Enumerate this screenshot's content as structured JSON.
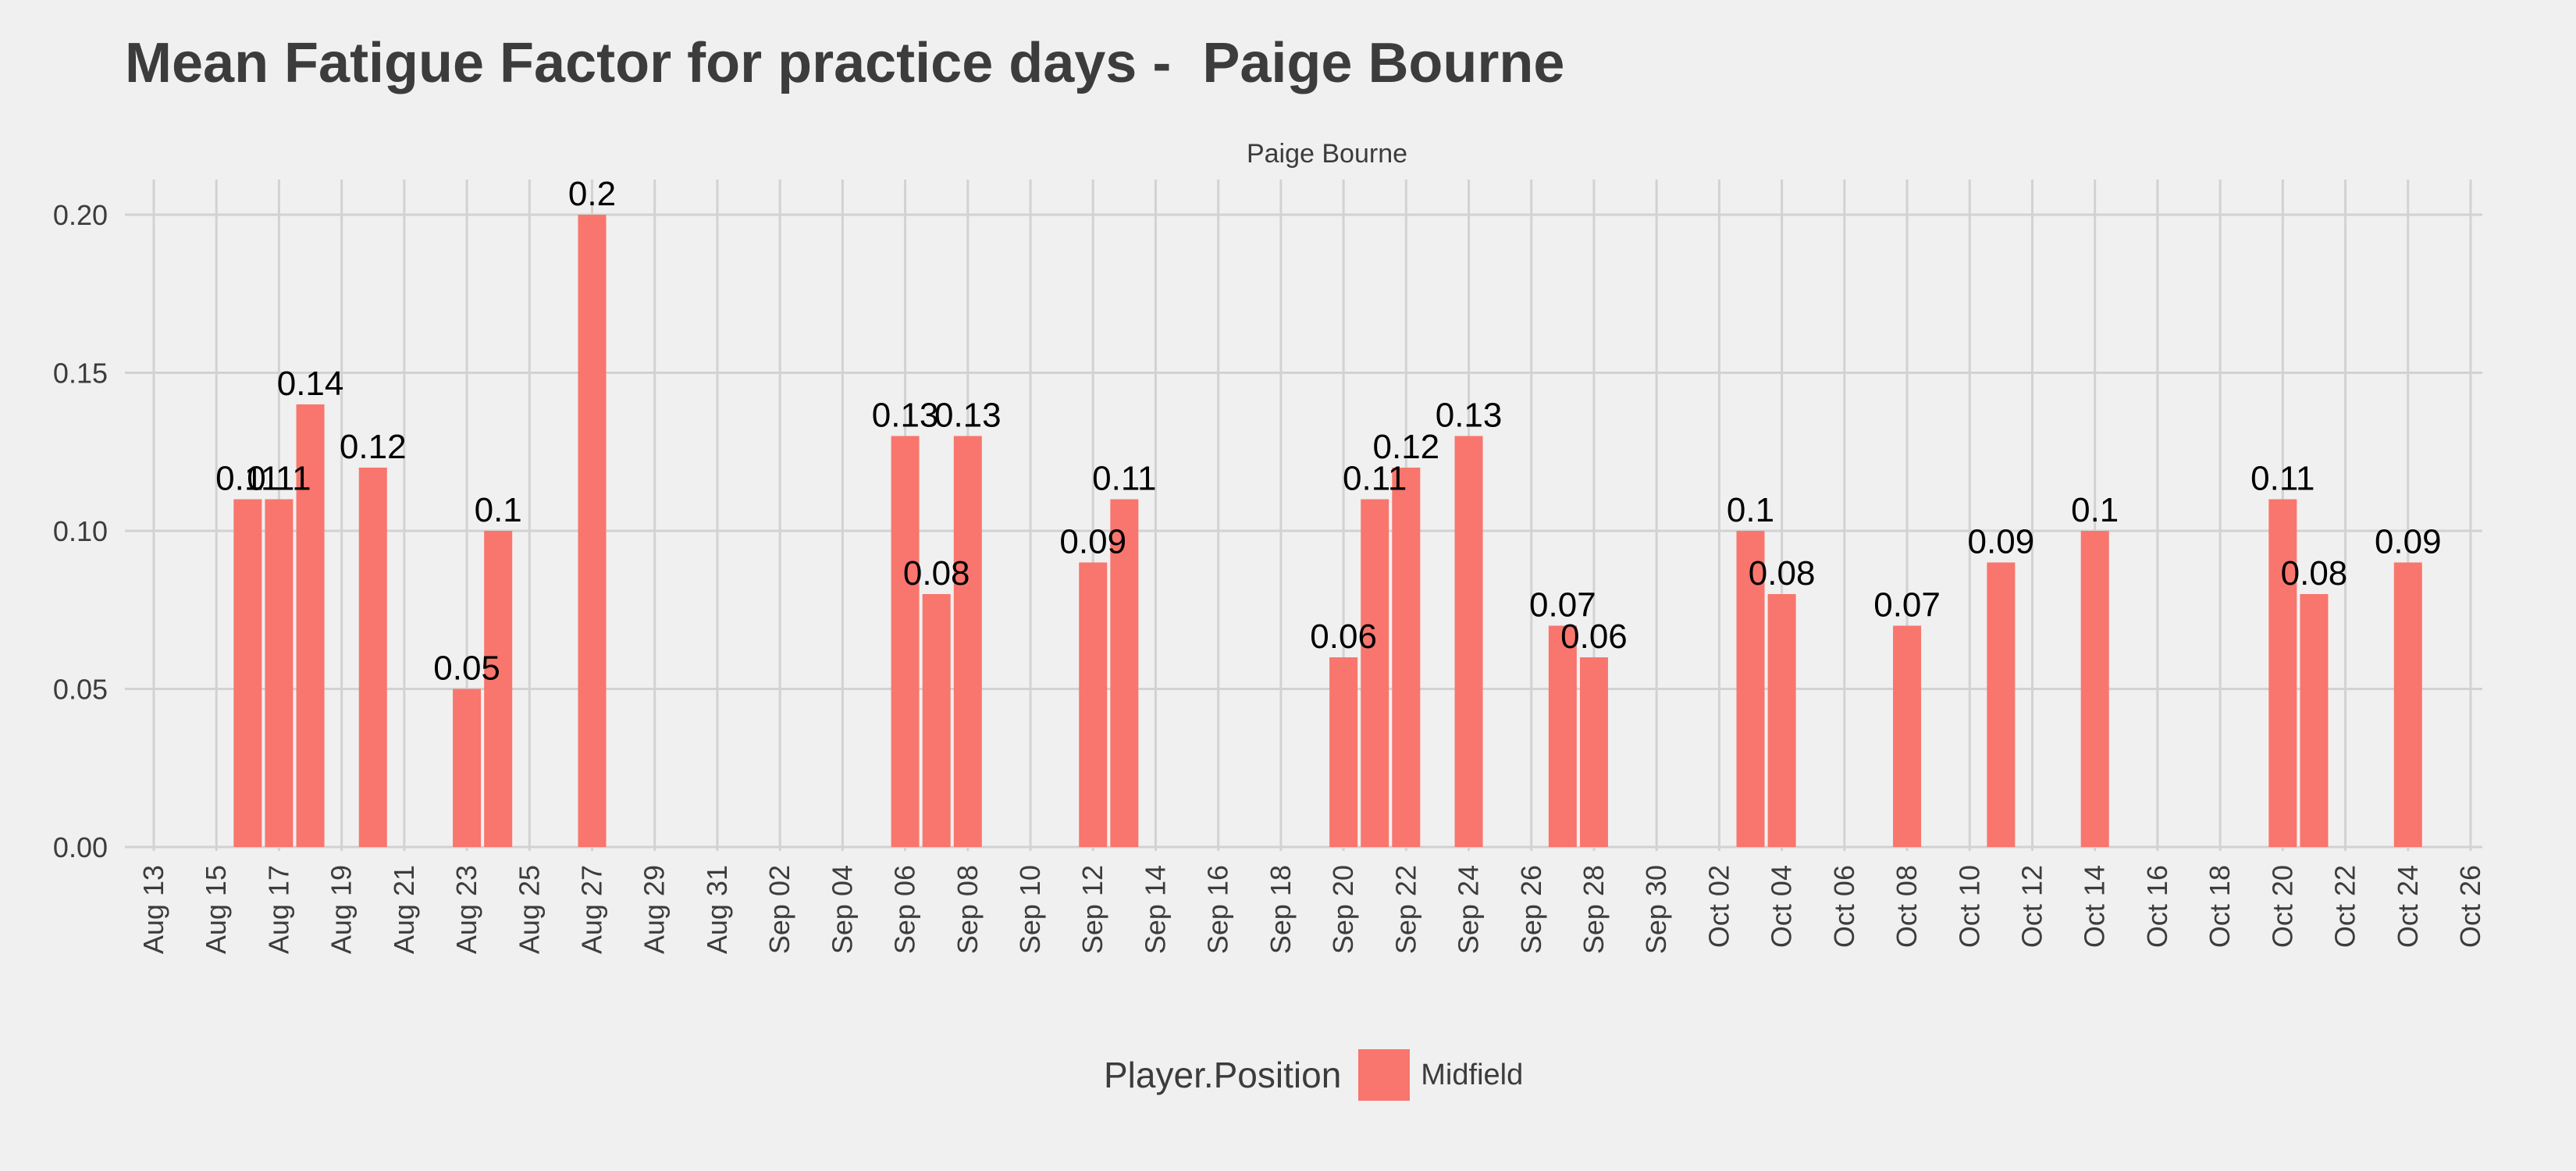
{
  "colors": {
    "background": "#f0f0f0",
    "grid": "#d2d2d2",
    "bar": "#f8766d",
    "text": "#3c3c3c"
  },
  "chart_data": {
    "type": "bar",
    "title": "Mean Fatigue Factor for practice days -  Paige Bourne",
    "subtitle": "Paige Bourne",
    "xlabel": "",
    "ylabel": "",
    "ylim": [
      0,
      0.2
    ],
    "yticks": [
      "0.00",
      "0.05",
      "0.10",
      "0.15",
      "0.20"
    ],
    "x_axis": {
      "type": "date",
      "range": [
        "Aug 13",
        "Oct 26"
      ],
      "tick_labels": [
        "Aug 13",
        "Aug 15",
        "Aug 17",
        "Aug 19",
        "Aug 21",
        "Aug 23",
        "Aug 25",
        "Aug 27",
        "Aug 29",
        "Aug 31",
        "Sep 02",
        "Sep 04",
        "Sep 06",
        "Sep 08",
        "Sep 10",
        "Sep 12",
        "Sep 14",
        "Sep 16",
        "Sep 18",
        "Sep 20",
        "Sep 22",
        "Sep 24",
        "Sep 26",
        "Sep 28",
        "Sep 30",
        "Oct 02",
        "Oct 04",
        "Oct 06",
        "Oct 08",
        "Oct 10",
        "Oct 12",
        "Oct 14",
        "Oct 16",
        "Oct 18",
        "Oct 20",
        "Oct 22",
        "Oct 24",
        "Oct 26"
      ]
    },
    "grid": true,
    "legend": {
      "title": "Player.Position",
      "position": "bottom",
      "entries": [
        {
          "label": "Midfield",
          "color": "#f8766d"
        }
      ]
    },
    "series": [
      {
        "name": "Midfield",
        "points": [
          {
            "x": "Aug 16",
            "y": 0.11,
            "label": "0.11"
          },
          {
            "x": "Aug 17",
            "y": 0.11,
            "label": "0.11"
          },
          {
            "x": "Aug 18",
            "y": 0.14,
            "label": "0.14"
          },
          {
            "x": "Aug 20",
            "y": 0.12,
            "label": "0.12"
          },
          {
            "x": "Aug 23",
            "y": 0.05,
            "label": "0.05"
          },
          {
            "x": "Aug 24",
            "y": 0.1,
            "label": "0.1"
          },
          {
            "x": "Aug 27",
            "y": 0.2,
            "label": "0.2"
          },
          {
            "x": "Sep 06",
            "y": 0.13,
            "label": "0.13"
          },
          {
            "x": "Sep 07",
            "y": 0.08,
            "label": "0.08"
          },
          {
            "x": "Sep 08",
            "y": 0.13,
            "label": "0.13"
          },
          {
            "x": "Sep 12",
            "y": 0.09,
            "label": "0.09"
          },
          {
            "x": "Sep 13",
            "y": 0.11,
            "label": "0.11"
          },
          {
            "x": "Sep 20",
            "y": 0.06,
            "label": "0.06"
          },
          {
            "x": "Sep 21",
            "y": 0.11,
            "label": "0.11"
          },
          {
            "x": "Sep 22",
            "y": 0.12,
            "label": "0.12"
          },
          {
            "x": "Sep 24",
            "y": 0.13,
            "label": "0.13"
          },
          {
            "x": "Sep 27",
            "y": 0.07,
            "label": "0.07"
          },
          {
            "x": "Sep 28",
            "y": 0.06,
            "label": "0.06"
          },
          {
            "x": "Oct 03",
            "y": 0.1,
            "label": "0.1"
          },
          {
            "x": "Oct 04",
            "y": 0.08,
            "label": "0.08"
          },
          {
            "x": "Oct 08",
            "y": 0.07,
            "label": "0.07"
          },
          {
            "x": "Oct 11",
            "y": 0.09,
            "label": "0.09"
          },
          {
            "x": "Oct 14",
            "y": 0.1,
            "label": "0.1"
          },
          {
            "x": "Oct 20",
            "y": 0.11,
            "label": "0.11"
          },
          {
            "x": "Oct 21",
            "y": 0.08,
            "label": "0.08"
          },
          {
            "x": "Oct 24",
            "y": 0.09,
            "label": "0.09"
          }
        ]
      }
    ]
  }
}
